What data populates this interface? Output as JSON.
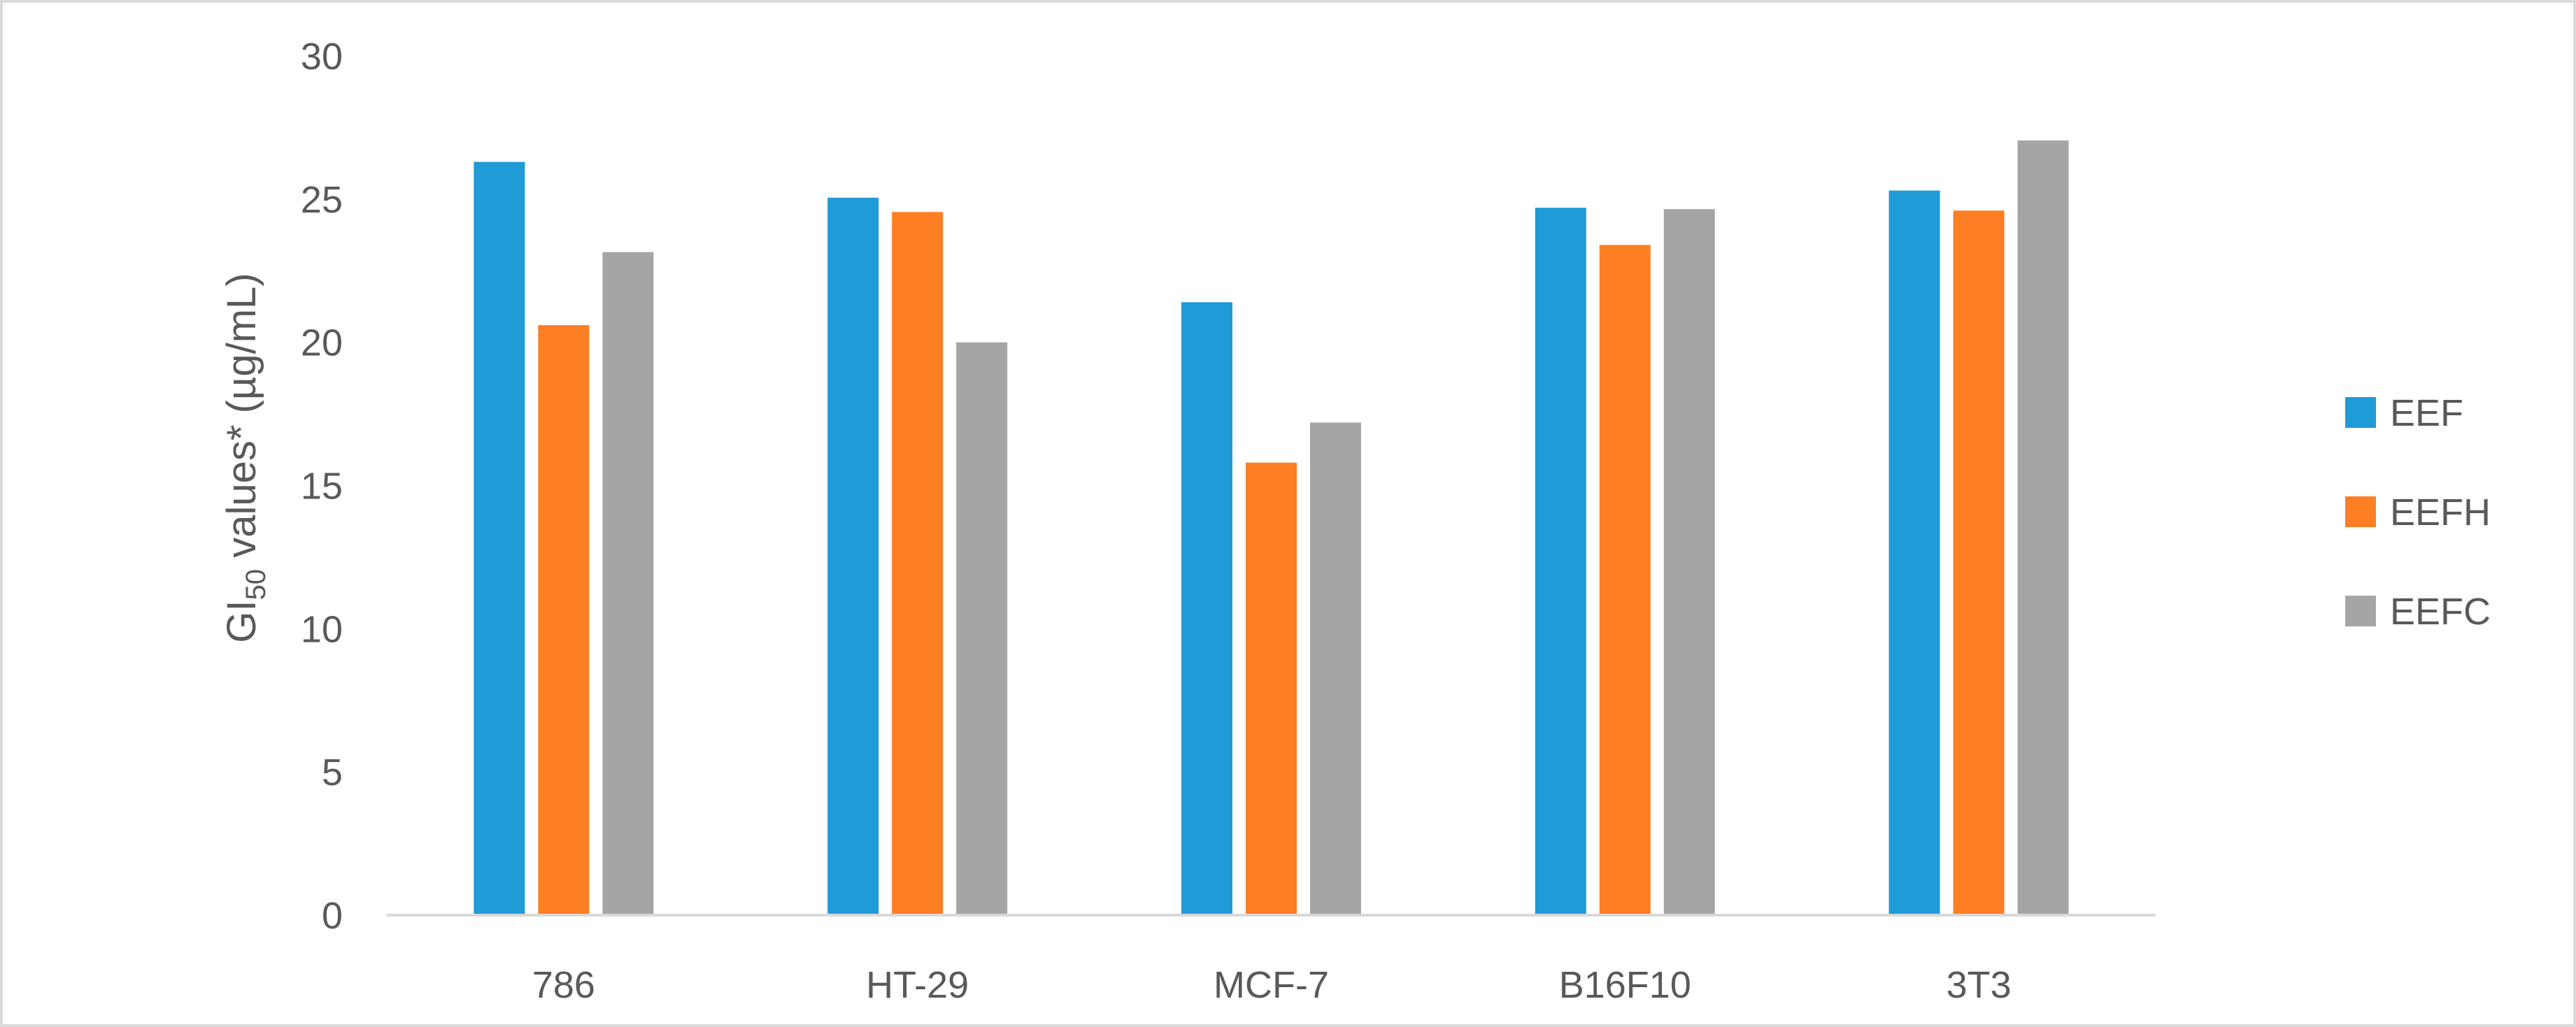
{
  "chart_data": {
    "type": "bar",
    "categories": [
      "786",
      "HT-29",
      "MCF-7",
      "B16F10",
      "3T3"
    ],
    "series": [
      {
        "name": "EEF",
        "color": "#1f9bd7",
        "values": [
          26.3,
          25.05,
          21.4,
          24.7,
          25.3
        ]
      },
      {
        "name": "EEFH",
        "color": "#fd7e23",
        "values": [
          20.6,
          24.55,
          15.8,
          23.4,
          24.6
        ]
      },
      {
        "name": "EEFC",
        "color": "#a5a5a5",
        "values": [
          23.15,
          20.0,
          17.2,
          24.65,
          27.05
        ]
      }
    ],
    "ylabel": {
      "prefix": "GI",
      "subscript": "50",
      "suffix": " values* (µg/mL)"
    },
    "ylim": [
      0,
      30
    ],
    "yticks": [
      0,
      5,
      10,
      15,
      20,
      25,
      30
    ],
    "grid": false,
    "legend_position": "right"
  }
}
